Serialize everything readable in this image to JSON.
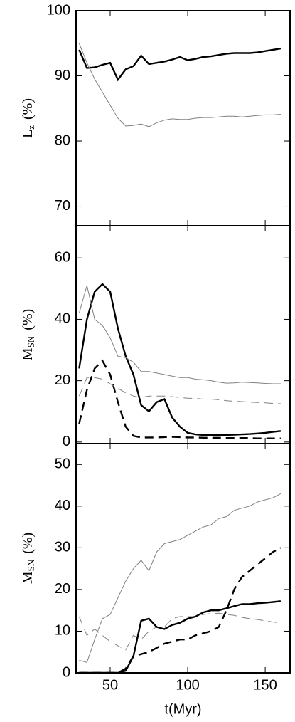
{
  "chart_data": [
    {
      "type": "line",
      "ylabel": [
        "L",
        "z",
        "(%)"
      ],
      "x": [
        30,
        35,
        40,
        45,
        50,
        55,
        60,
        65,
        70,
        75,
        80,
        85,
        90,
        95,
        100,
        105,
        110,
        115,
        120,
        125,
        130,
        135,
        140,
        145,
        150,
        155,
        160
      ],
      "xlim": [
        28,
        166
      ],
      "xticks": [
        50,
        100,
        150
      ],
      "ylim": [
        67,
        100
      ],
      "yticks": [
        70,
        80,
        90,
        100
      ],
      "series": [
        {
          "color": "#000000",
          "style": "thick",
          "dashed": false,
          "values": [
            94,
            91.2,
            91.3,
            91.7,
            92,
            89.4,
            91,
            91.5,
            93.1,
            91.8,
            92,
            92.2,
            92.5,
            92.9,
            92.4,
            92.6,
            92.9,
            93,
            93.2,
            93.4,
            93.5,
            93.5,
            93.5,
            93.6,
            93.8,
            94,
            94.2
          ]
        },
        {
          "color": "#808080",
          "style": "thin",
          "dashed": false,
          "values": [
            95,
            92,
            89.5,
            87.5,
            85.5,
            83.5,
            82.3,
            82.4,
            82.6,
            82.2,
            82.8,
            83.2,
            83.4,
            83.3,
            83.3,
            83.5,
            83.6,
            83.6,
            83.7,
            83.8,
            83.8,
            83.7,
            83.8,
            83.9,
            84,
            84,
            84.1
          ]
        }
      ]
    },
    {
      "type": "line",
      "ylabel": [
        "M",
        "SN",
        "(%)"
      ],
      "x": [
        30,
        35,
        40,
        45,
        50,
        55,
        60,
        65,
        70,
        75,
        80,
        85,
        90,
        95,
        100,
        105,
        110,
        115,
        120,
        125,
        130,
        135,
        140,
        145,
        150,
        155,
        160
      ],
      "xlim": [
        28,
        166
      ],
      "xticks": [
        50,
        100,
        150
      ],
      "ylim": [
        -0.5,
        70.5
      ],
      "yticks": [
        0,
        20,
        40,
        60
      ],
      "series": [
        {
          "color": "#000000",
          "style": "thick",
          "dashed": false,
          "values": [
            24,
            40,
            49,
            51.5,
            49,
            37,
            28,
            22,
            12,
            10,
            13,
            14,
            8,
            5,
            3,
            2.5,
            2.3,
            2.3,
            2.3,
            2.3,
            2.4,
            2.5,
            2.6,
            2.8,
            3,
            3.3,
            3.6
          ]
        },
        {
          "color": "#808080",
          "style": "thin",
          "dashed": false,
          "values": [
            42,
            51,
            40,
            38,
            34,
            28,
            27.5,
            26,
            23,
            23,
            22.5,
            22,
            21.5,
            21,
            21,
            20.5,
            20.3,
            20,
            19.5,
            19.2,
            19.3,
            19.5,
            19.4,
            19.3,
            19.1,
            19,
            19
          ]
        },
        {
          "color": "#000000",
          "style": "thick",
          "dashed": true,
          "values": [
            6,
            17,
            24,
            26.5,
            22,
            13,
            5,
            2,
            1.5,
            1.5,
            1.5,
            1.6,
            1.7,
            1.6,
            1.5,
            1.5,
            1.4,
            1.4,
            1.4,
            1.3,
            1.3,
            1.3,
            1.3,
            1.2,
            1.2,
            1.2,
            1.2
          ]
        },
        {
          "color": "#808080",
          "style": "thin",
          "dashed": true,
          "values": [
            15,
            21,
            21,
            20.5,
            19,
            17.5,
            16,
            15,
            14.5,
            15,
            15,
            15,
            14.8,
            14.5,
            14.3,
            14.2,
            14,
            14,
            13.8,
            13.5,
            13.3,
            13.2,
            13,
            12.9,
            12.8,
            12.6,
            12.5
          ]
        }
      ]
    },
    {
      "type": "line",
      "ylabel": [
        "M",
        "SN",
        "(%)"
      ],
      "xlabel": "t(Myr)",
      "x": [
        30,
        35,
        40,
        45,
        50,
        55,
        60,
        65,
        70,
        75,
        80,
        85,
        90,
        95,
        100,
        105,
        110,
        115,
        120,
        125,
        130,
        135,
        140,
        145,
        150,
        155,
        160
      ],
      "xlim": [
        28,
        166
      ],
      "xticks": [
        50,
        100,
        150
      ],
      "ylim": [
        0,
        55
      ],
      "yticks": [
        0,
        10,
        20,
        30,
        40,
        50
      ],
      "series": [
        {
          "color": "#808080",
          "style": "thin",
          "dashed": false,
          "values": [
            3,
            2.5,
            8,
            13,
            14,
            18,
            22,
            25,
            27,
            24.5,
            29,
            31,
            31.5,
            32,
            33,
            34,
            35,
            35.5,
            37,
            37.5,
            39,
            39.5,
            40,
            41,
            41.5,
            42,
            43
          ]
        },
        {
          "color": "#808080",
          "style": "thin",
          "dashed": true,
          "values": [
            13.5,
            9,
            10.5,
            9,
            7.5,
            6.5,
            5.5,
            9,
            8,
            10,
            11,
            11,
            13,
            13.5,
            13.5,
            13.5,
            14,
            14.2,
            14.3,
            14,
            13.8,
            13.3,
            13,
            12.8,
            12.5,
            12.2,
            12
          ]
        },
        {
          "color": "#000000",
          "style": "thick",
          "dashed": false,
          "values": [
            0,
            0,
            0,
            0,
            0,
            0,
            0.5,
            4,
            12.5,
            13,
            11,
            10.5,
            11.5,
            12,
            13,
            13.5,
            14.5,
            15,
            15,
            15.5,
            16,
            16.5,
            16.5,
            16.7,
            16.8,
            17,
            17.2
          ]
        },
        {
          "color": "#000000",
          "style": "thick",
          "dashed": true,
          "values": [
            0,
            0,
            0,
            0,
            0,
            0,
            1,
            4,
            4.5,
            5,
            6,
            7,
            7.5,
            8,
            8,
            9,
            9.5,
            10,
            11,
            15,
            20,
            23,
            24.5,
            26,
            27.5,
            29,
            30
          ]
        }
      ]
    }
  ]
}
